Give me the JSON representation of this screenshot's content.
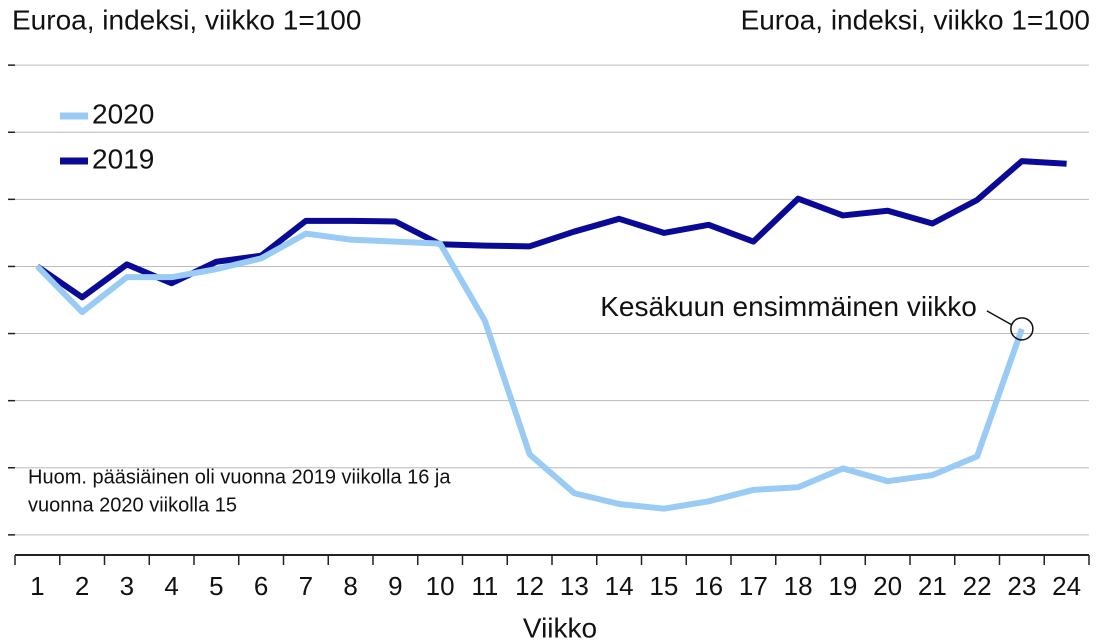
{
  "chart_data": {
    "type": "line",
    "y_label": "Euroa, indeksi, viikko 1=100",
    "y2_label": "Euroa, indeksi, viikko 1=100",
    "x_label": "Viikko",
    "x": [
      1,
      2,
      3,
      4,
      5,
      6,
      7,
      8,
      9,
      10,
      11,
      12,
      13,
      14,
      15,
      16,
      17,
      18,
      19,
      20,
      21,
      22,
      23,
      24
    ],
    "xlim": [
      0.5,
      24.5
    ],
    "xticks": [
      1,
      2,
      3,
      4,
      5,
      6,
      7,
      8,
      9,
      10,
      11,
      12,
      13,
      14,
      15,
      16,
      17,
      18,
      19,
      20,
      21,
      22,
      23,
      24
    ],
    "ylim": [
      57,
      133
    ],
    "yticks": [
      60,
      70,
      80,
      90,
      100,
      110,
      120,
      130
    ],
    "grid": true,
    "legend": "upper left",
    "series": [
      {
        "name": "2020",
        "color": "#99cbf5",
        "values": [
          100,
          93.2,
          98.4,
          98.4,
          99.6,
          101.2,
          104.9,
          104.0,
          103.7,
          103.4,
          91.9,
          72.0,
          66.2,
          64.6,
          63.9,
          65.0,
          66.7,
          67.1,
          69.9,
          68.0,
          68.9,
          71.7,
          90.7,
          null
        ]
      },
      {
        "name": "2019",
        "color": "#0a0a96",
        "values": [
          100,
          95.4,
          100.3,
          97.5,
          100.7,
          101.6,
          106.8,
          106.8,
          106.7,
          103.3,
          103.1,
          103.0,
          105.2,
          107.1,
          105.0,
          106.2,
          103.7,
          110.1,
          107.6,
          108.3,
          106.4,
          109.9,
          115.7,
          115.3
        ]
      }
    ],
    "annotation": {
      "text": "Kesäkuun ensimmäinen viikko",
      "x": 23
    },
    "note": [
      "Huom. pääsiäinen oli vuonna 2019 viikolla 16 ja",
      "vuonna 2020 viikolla 15"
    ]
  }
}
